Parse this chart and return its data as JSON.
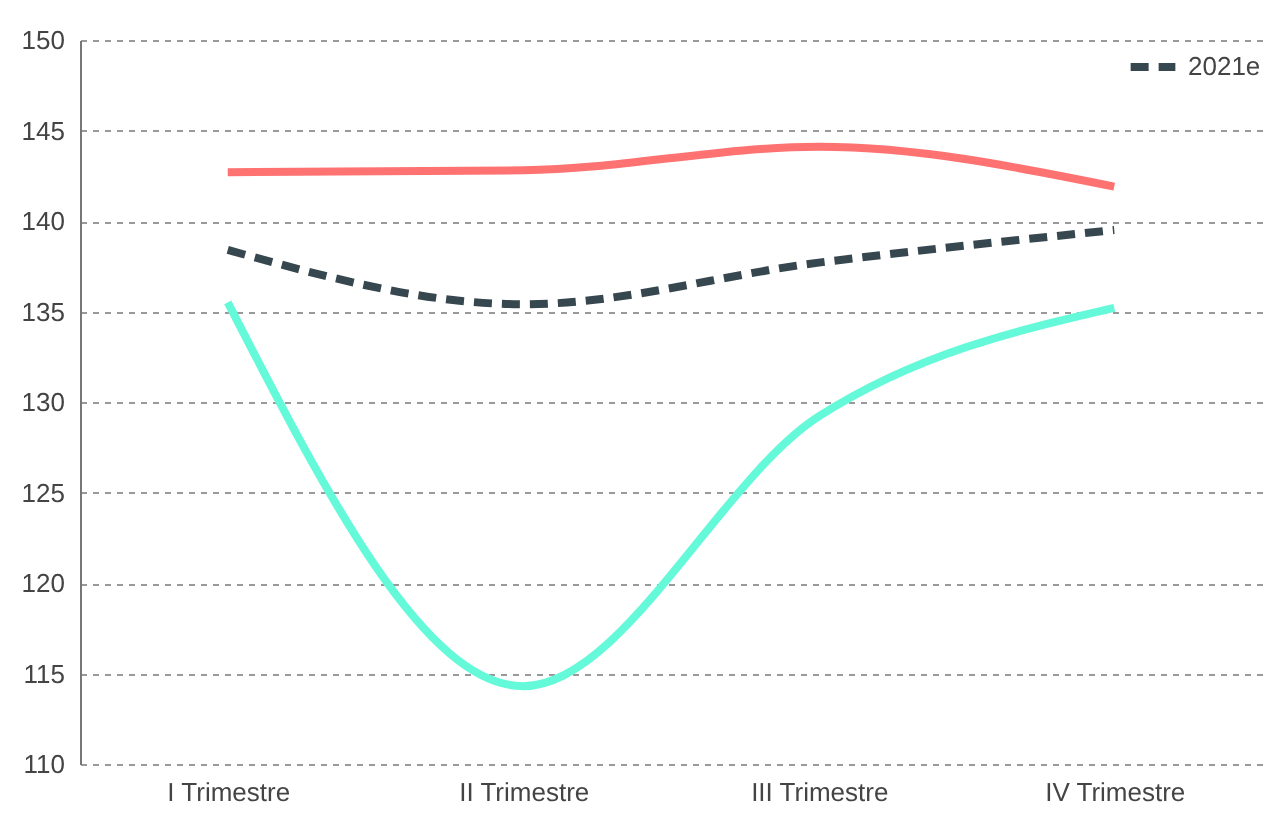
{
  "chart_data": {
    "type": "line",
    "categories": [
      "I Trimestre",
      "II Trimestre",
      "III Trimestre",
      "IV Trimestre"
    ],
    "series": [
      {
        "color": "#ff7272",
        "line_style": "solid",
        "values": [
          142.7,
          142.8,
          144.1,
          141.9
        ]
      },
      {
        "color": "#64f9d9",
        "line_style": "solid",
        "values": [
          135.5,
          114.3,
          129.2,
          135.2
        ]
      },
      {
        "name": "2021e",
        "color": "#37474f",
        "line_style": "dashed",
        "values": [
          138.4,
          135.4,
          137.7,
          139.5
        ]
      }
    ],
    "ylim": [
      110,
      150
    ],
    "yticks": [
      110,
      115,
      120,
      125,
      130,
      135,
      140,
      145,
      150
    ],
    "grid": "y",
    "legend": "top right"
  }
}
